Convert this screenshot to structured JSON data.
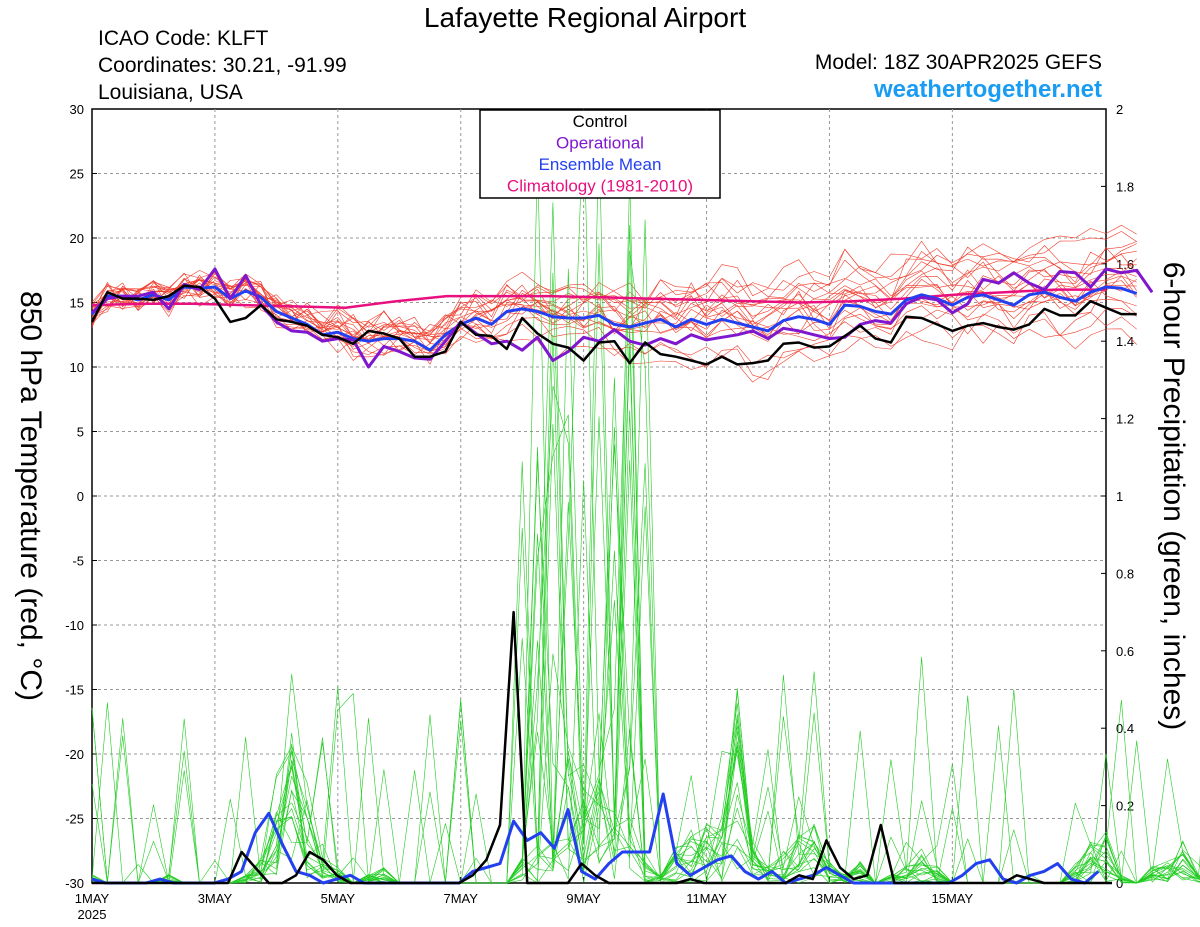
{
  "header": {
    "title": "Lafayette Regional Airport",
    "icao": "ICAO Code: KLFT",
    "coordinates": "Coordinates: 30.21, -91.99",
    "region": "Louisiana, USA",
    "model": "Model: 18Z 30APR2025 GEFS",
    "site": "weathertogether.net"
  },
  "colors": {
    "control": "#000000",
    "operational": "#7f17cf",
    "ensemble_mean": "#2340f0",
    "climatology": "#e8107f",
    "members_temp": "#f03c2c",
    "members_precip": "#22cc22",
    "site": "#1a9cf2"
  },
  "chart_data": {
    "type": "line",
    "title": "Lafayette Regional Airport",
    "ylabel": "850 hPa Temperature (red, °C)",
    "y2label": "6-hour Precipitation (green, inches)",
    "ylim": [
      -30,
      30
    ],
    "y2lim": [
      0,
      2
    ],
    "yticks": [
      "30",
      "25",
      "20",
      "15",
      "10",
      "5",
      "0",
      "-5",
      "-10",
      "-15",
      "-20",
      "-25",
      "-30"
    ],
    "y2ticks": [
      "2",
      "1.8",
      "1.6",
      "1.4",
      "1.2",
      "1",
      "0.8",
      "0.6",
      "0.4",
      "0.2",
      "0"
    ],
    "xlim": [
      0,
      16.5
    ],
    "x_tick_positions": [
      0,
      2,
      4,
      6,
      8,
      10,
      12,
      14
    ],
    "x_tick_labels": [
      "1MAY",
      "3MAY",
      "5MAY",
      "7MAY",
      "9MAY",
      "11MAY",
      "13MAY",
      "15MAY"
    ],
    "x_year_label": "2025",
    "grid": true,
    "legend_position": "top-center",
    "legend": [
      "Control",
      "Operational",
      "Ensemble Mean",
      "Climatology (1981-2010)"
    ],
    "x_step_days": 0.25,
    "series": [
      {
        "name": "Control",
        "axis": "left",
        "values": [
          13.5,
          15.8,
          15.3,
          15.3,
          15.2,
          15.5,
          16.3,
          16.2,
          15.3,
          13.5,
          13.8,
          14.8,
          13.7,
          13.5,
          13.2,
          12.5,
          12.3,
          11.8,
          12.8,
          12.6,
          12.2,
          10.8,
          10.8,
          11.2,
          13.5,
          12.5,
          12.4,
          11.4,
          13.8,
          12.6,
          11.8,
          11.5,
          10.5,
          11.9,
          12.0,
          10.3,
          11.9,
          11.0,
          10.8,
          10.5,
          10.2,
          10.8,
          10.2,
          10.3,
          10.5,
          11.8,
          11.9,
          11.5,
          11.6,
          12.4,
          13.2,
          12.2,
          11.9,
          13.9,
          13.8,
          13.3,
          12.8,
          13.2,
          13.4,
          13.1,
          12.9,
          13.3,
          14.5,
          14.0,
          14.0,
          15.1,
          14.6,
          14.1,
          14.1
        ]
      },
      {
        "name": "Operational",
        "axis": "left",
        "values": [
          14.2,
          15.3,
          15.5,
          15.5,
          15.8,
          14.5,
          16.4,
          16.0,
          17.6,
          15.3,
          17.1,
          14.8,
          13.5,
          12.8,
          12.7,
          12.0,
          12.2,
          12.1,
          10.0,
          11.6,
          11.2,
          10.7,
          10.6,
          12.0,
          13.5,
          12.6,
          11.8,
          12.0,
          11.3,
          12.3,
          10.5,
          11.2,
          12.3,
          12.0,
          12.9,
          12.0,
          11.7,
          12.2,
          11.8,
          12.5,
          12.1,
          12.3,
          12.5,
          12.8,
          12.2,
          13.0,
          12.8,
          12.5,
          12.2,
          12.3,
          13.3,
          13.6,
          13.4,
          14.9,
          15.4,
          15.2,
          14.2,
          14.9,
          16.8,
          16.5,
          17.3,
          16.5,
          16.0,
          17.4,
          17.3,
          16.2,
          17.6,
          17.3,
          17.5,
          15.8
        ]
      },
      {
        "name": "Ensemble Mean",
        "axis": "left",
        "values": [
          14.1,
          15.5,
          15.5,
          15.2,
          15.6,
          15.2,
          16.2,
          16.1,
          16.2,
          15.3,
          15.9,
          15.4,
          14.3,
          13.8,
          13.3,
          12.5,
          12.7,
          12.2,
          12.0,
          12.2,
          12.2,
          12.0,
          11.3,
          12.5,
          13.3,
          13.8,
          13.3,
          14.3,
          14.5,
          14.3,
          13.9,
          13.8,
          13.8,
          14.0,
          13.3,
          13.1,
          13.4,
          13.7,
          13.1,
          13.7,
          13.3,
          13.7,
          13.4,
          13.1,
          12.8,
          13.6,
          13.9,
          13.7,
          13.3,
          14.8,
          14.7,
          14.3,
          14.1,
          15.2,
          15.6,
          15.3,
          14.8,
          15.4,
          15.6,
          15.2,
          14.8,
          15.6,
          15.8,
          15.4,
          15.1,
          15.8,
          16.2,
          16.1,
          15.7
        ]
      },
      {
        "name": "Climatology (1981-2010)",
        "axis": "left",
        "values": [
          14.8,
          14.9,
          14.9,
          14.8,
          14.7,
          14.6,
          15.1,
          15.5,
          15.5,
          15.5,
          15.4,
          15.3,
          15.2,
          15.1,
          15.0,
          15.1,
          15.3,
          15.6,
          15.8,
          16.0,
          16.0
        ]
      },
      {
        "name": "Control 6-hour precipitation",
        "axis": "right",
        "values": [
          0,
          0,
          0,
          0,
          0,
          0,
          0,
          0,
          0,
          0,
          0,
          0.08,
          0.04,
          0,
          0,
          0.02,
          0.08,
          0.06,
          0.02,
          0,
          0,
          0,
          0,
          0,
          0,
          0,
          0,
          0,
          0.02,
          0.06,
          0.15,
          0.7,
          0,
          0,
          0,
          0,
          0.05,
          0.02,
          0,
          0,
          0,
          0,
          0,
          0,
          0.01,
          0,
          0,
          0,
          0,
          0,
          0,
          0,
          0.02,
          0.01,
          0.11,
          0.04,
          0.01,
          0.02,
          0.15,
          0,
          0,
          0,
          0,
          0,
          0,
          0,
          0,
          0,
          0.02,
          0.01,
          0,
          0,
          0,
          0,
          0,
          0
        ]
      },
      {
        "name": "Ensemble Mean 6-hour precipitation",
        "axis": "right",
        "values": [
          0.01,
          0,
          0,
          0,
          0,
          0.01,
          0,
          0,
          0,
          0,
          0.01,
          0.03,
          0.13,
          0.18,
          0.1,
          0.03,
          0.02,
          0,
          0.01,
          0.02,
          0,
          0,
          0,
          0,
          0,
          0,
          0,
          0,
          0.03,
          0.04,
          0.05,
          0.16,
          0.11,
          0.13,
          0.09,
          0.19,
          0.03,
          0.01,
          0.05,
          0.08,
          0.08,
          0.08,
          0.23,
          0.05,
          0.02,
          0.04,
          0.06,
          0.07,
          0.03,
          0.01,
          0.03,
          0,
          0.01,
          0.02,
          0.04,
          0.02,
          0,
          0,
          0,
          0,
          0,
          0,
          0,
          0,
          0.02,
          0.05,
          0.06,
          0.01,
          0,
          0.02,
          0.03,
          0.05,
          0.01,
          0,
          0.03
        ]
      }
    ]
  }
}
